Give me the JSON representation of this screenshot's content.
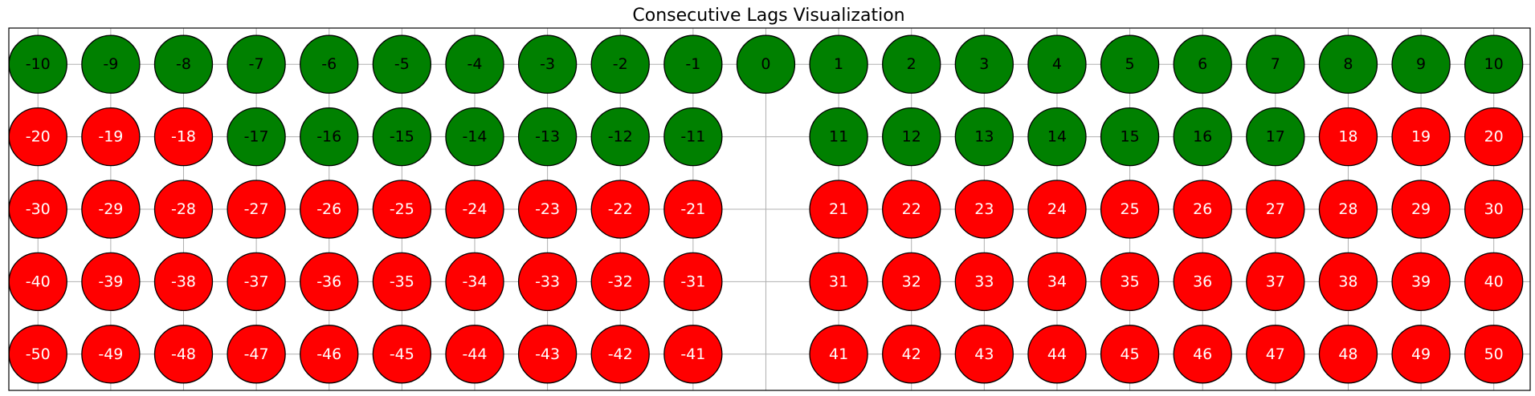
{
  "chart_data": {
    "type": "scatter",
    "title": "Consecutive Lags Visualization",
    "xlabel": "",
    "ylabel": "",
    "xlim": [
      -10.4,
      10.5
    ],
    "ylim": [
      -4.5,
      0.5
    ],
    "grid": true,
    "colors": {
      "green": "#008000",
      "red": "#ff0000",
      "outline": "#000000",
      "grid": "#b0b0b0"
    },
    "points": [
      {
        "label": "-10",
        "x": -10,
        "y": 0,
        "color": "green"
      },
      {
        "label": "-9",
        "x": -9,
        "y": 0,
        "color": "green"
      },
      {
        "label": "-8",
        "x": -8,
        "y": 0,
        "color": "green"
      },
      {
        "label": "-7",
        "x": -7,
        "y": 0,
        "color": "green"
      },
      {
        "label": "-6",
        "x": -6,
        "y": 0,
        "color": "green"
      },
      {
        "label": "-5",
        "x": -5,
        "y": 0,
        "color": "green"
      },
      {
        "label": "-4",
        "x": -4,
        "y": 0,
        "color": "green"
      },
      {
        "label": "-3",
        "x": -3,
        "y": 0,
        "color": "green"
      },
      {
        "label": "-2",
        "x": -2,
        "y": 0,
        "color": "green"
      },
      {
        "label": "-1",
        "x": -1,
        "y": 0,
        "color": "green"
      },
      {
        "label": "0",
        "x": 0,
        "y": 0,
        "color": "green"
      },
      {
        "label": "1",
        "x": 1,
        "y": 0,
        "color": "green"
      },
      {
        "label": "2",
        "x": 2,
        "y": 0,
        "color": "green"
      },
      {
        "label": "3",
        "x": 3,
        "y": 0,
        "color": "green"
      },
      {
        "label": "4",
        "x": 4,
        "y": 0,
        "color": "green"
      },
      {
        "label": "5",
        "x": 5,
        "y": 0,
        "color": "green"
      },
      {
        "label": "6",
        "x": 6,
        "y": 0,
        "color": "green"
      },
      {
        "label": "7",
        "x": 7,
        "y": 0,
        "color": "green"
      },
      {
        "label": "8",
        "x": 8,
        "y": 0,
        "color": "green"
      },
      {
        "label": "9",
        "x": 9,
        "y": 0,
        "color": "green"
      },
      {
        "label": "10",
        "x": 10,
        "y": 0,
        "color": "green"
      },
      {
        "label": "-20",
        "x": -10,
        "y": -1,
        "color": "red"
      },
      {
        "label": "-19",
        "x": -9,
        "y": -1,
        "color": "red"
      },
      {
        "label": "-18",
        "x": -8,
        "y": -1,
        "color": "red"
      },
      {
        "label": "-17",
        "x": -7,
        "y": -1,
        "color": "green"
      },
      {
        "label": "-16",
        "x": -6,
        "y": -1,
        "color": "green"
      },
      {
        "label": "-15",
        "x": -5,
        "y": -1,
        "color": "green"
      },
      {
        "label": "-14",
        "x": -4,
        "y": -1,
        "color": "green"
      },
      {
        "label": "-13",
        "x": -3,
        "y": -1,
        "color": "green"
      },
      {
        "label": "-12",
        "x": -2,
        "y": -1,
        "color": "green"
      },
      {
        "label": "-11",
        "x": -1,
        "y": -1,
        "color": "green"
      },
      {
        "label": "11",
        "x": 1,
        "y": -1,
        "color": "green"
      },
      {
        "label": "12",
        "x": 2,
        "y": -1,
        "color": "green"
      },
      {
        "label": "13",
        "x": 3,
        "y": -1,
        "color": "green"
      },
      {
        "label": "14",
        "x": 4,
        "y": -1,
        "color": "green"
      },
      {
        "label": "15",
        "x": 5,
        "y": -1,
        "color": "green"
      },
      {
        "label": "16",
        "x": 6,
        "y": -1,
        "color": "green"
      },
      {
        "label": "17",
        "x": 7,
        "y": -1,
        "color": "green"
      },
      {
        "label": "18",
        "x": 8,
        "y": -1,
        "color": "red"
      },
      {
        "label": "19",
        "x": 9,
        "y": -1,
        "color": "red"
      },
      {
        "label": "20",
        "x": 10,
        "y": -1,
        "color": "red"
      },
      {
        "label": "-30",
        "x": -10,
        "y": -2,
        "color": "red"
      },
      {
        "label": "-29",
        "x": -9,
        "y": -2,
        "color": "red"
      },
      {
        "label": "-28",
        "x": -8,
        "y": -2,
        "color": "red"
      },
      {
        "label": "-27",
        "x": -7,
        "y": -2,
        "color": "red"
      },
      {
        "label": "-26",
        "x": -6,
        "y": -2,
        "color": "red"
      },
      {
        "label": "-25",
        "x": -5,
        "y": -2,
        "color": "red"
      },
      {
        "label": "-24",
        "x": -4,
        "y": -2,
        "color": "red"
      },
      {
        "label": "-23",
        "x": -3,
        "y": -2,
        "color": "red"
      },
      {
        "label": "-22",
        "x": -2,
        "y": -2,
        "color": "red"
      },
      {
        "label": "-21",
        "x": -1,
        "y": -2,
        "color": "red"
      },
      {
        "label": "21",
        "x": 1,
        "y": -2,
        "color": "red"
      },
      {
        "label": "22",
        "x": 2,
        "y": -2,
        "color": "red"
      },
      {
        "label": "23",
        "x": 3,
        "y": -2,
        "color": "red"
      },
      {
        "label": "24",
        "x": 4,
        "y": -2,
        "color": "red"
      },
      {
        "label": "25",
        "x": 5,
        "y": -2,
        "color": "red"
      },
      {
        "label": "26",
        "x": 6,
        "y": -2,
        "color": "red"
      },
      {
        "label": "27",
        "x": 7,
        "y": -2,
        "color": "red"
      },
      {
        "label": "28",
        "x": 8,
        "y": -2,
        "color": "red"
      },
      {
        "label": "29",
        "x": 9,
        "y": -2,
        "color": "red"
      },
      {
        "label": "30",
        "x": 10,
        "y": -2,
        "color": "red"
      },
      {
        "label": "-40",
        "x": -10,
        "y": -3,
        "color": "red"
      },
      {
        "label": "-39",
        "x": -9,
        "y": -3,
        "color": "red"
      },
      {
        "label": "-38",
        "x": -8,
        "y": -3,
        "color": "red"
      },
      {
        "label": "-37",
        "x": -7,
        "y": -3,
        "color": "red"
      },
      {
        "label": "-36",
        "x": -6,
        "y": -3,
        "color": "red"
      },
      {
        "label": "-35",
        "x": -5,
        "y": -3,
        "color": "red"
      },
      {
        "label": "-34",
        "x": -4,
        "y": -3,
        "color": "red"
      },
      {
        "label": "-33",
        "x": -3,
        "y": -3,
        "color": "red"
      },
      {
        "label": "-32",
        "x": -2,
        "y": -3,
        "color": "red"
      },
      {
        "label": "-31",
        "x": -1,
        "y": -3,
        "color": "red"
      },
      {
        "label": "31",
        "x": 1,
        "y": -3,
        "color": "red"
      },
      {
        "label": "32",
        "x": 2,
        "y": -3,
        "color": "red"
      },
      {
        "label": "33",
        "x": 3,
        "y": -3,
        "color": "red"
      },
      {
        "label": "34",
        "x": 4,
        "y": -3,
        "color": "red"
      },
      {
        "label": "35",
        "x": 5,
        "y": -3,
        "color": "red"
      },
      {
        "label": "36",
        "x": 6,
        "y": -3,
        "color": "red"
      },
      {
        "label": "37",
        "x": 7,
        "y": -3,
        "color": "red"
      },
      {
        "label": "38",
        "x": 8,
        "y": -3,
        "color": "red"
      },
      {
        "label": "39",
        "x": 9,
        "y": -3,
        "color": "red"
      },
      {
        "label": "40",
        "x": 10,
        "y": -3,
        "color": "red"
      },
      {
        "label": "-50",
        "x": -10,
        "y": -4,
        "color": "red"
      },
      {
        "label": "-49",
        "x": -9,
        "y": -4,
        "color": "red"
      },
      {
        "label": "-48",
        "x": -8,
        "y": -4,
        "color": "red"
      },
      {
        "label": "-47",
        "x": -7,
        "y": -4,
        "color": "red"
      },
      {
        "label": "-46",
        "x": -6,
        "y": -4,
        "color": "red"
      },
      {
        "label": "-45",
        "x": -5,
        "y": -4,
        "color": "red"
      },
      {
        "label": "-44",
        "x": -4,
        "y": -4,
        "color": "red"
      },
      {
        "label": "-43",
        "x": -3,
        "y": -4,
        "color": "red"
      },
      {
        "label": "-42",
        "x": -2,
        "y": -4,
        "color": "red"
      },
      {
        "label": "-41",
        "x": -1,
        "y": -4,
        "color": "red"
      },
      {
        "label": "41",
        "x": 1,
        "y": -4,
        "color": "red"
      },
      {
        "label": "42",
        "x": 2,
        "y": -4,
        "color": "red"
      },
      {
        "label": "43",
        "x": 3,
        "y": -4,
        "color": "red"
      },
      {
        "label": "44",
        "x": 4,
        "y": -4,
        "color": "red"
      },
      {
        "label": "45",
        "x": 5,
        "y": -4,
        "color": "red"
      },
      {
        "label": "46",
        "x": 6,
        "y": -4,
        "color": "red"
      },
      {
        "label": "47",
        "x": 7,
        "y": -4,
        "color": "red"
      },
      {
        "label": "48",
        "x": 8,
        "y": -4,
        "color": "red"
      },
      {
        "label": "49",
        "x": 9,
        "y": -4,
        "color": "red"
      },
      {
        "label": "50",
        "x": 10,
        "y": -4,
        "color": "red"
      }
    ]
  }
}
